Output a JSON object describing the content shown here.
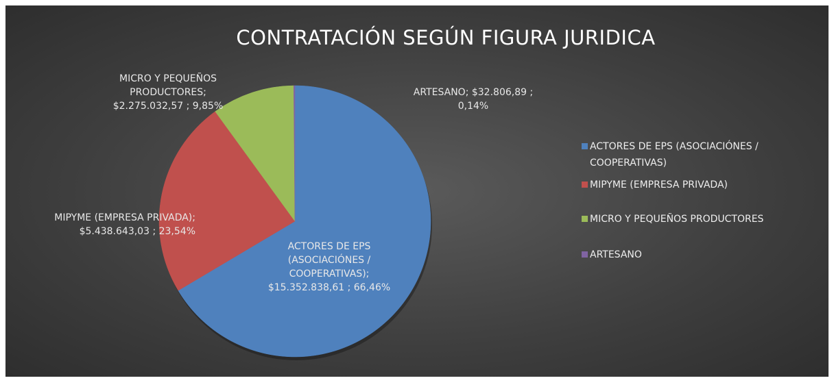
{
  "chart_data": {
    "type": "pie",
    "title": "CONTRATACIÓN SEGÚN FIGURA JURIDICA",
    "categories": [
      "ACTORES DE EPS (ASOCIACIÓNES / COOPERATIVAS)",
      "MIPYME (EMPRESA PRIVADA)",
      "MICRO Y PEQUEÑOS PRODUCTORES",
      "ARTESANO"
    ],
    "values": [
      15352838.61,
      5438643.03,
      2275032.57,
      32806.89
    ],
    "value_labels": [
      "ACTORES DE EPS (ASOCIACIÓNES / COOPERATIVAS); $15.352.838,61 ; 66,46%",
      "MIPYME (EMPRESA PRIVADA);  $5.438.643,03 ; 23,54%",
      "MICRO Y PEQUEÑOS PRODUCTORES; $2.275.032,57 ; 9,85%",
      "ARTESANO; $32.806,89 ; 0,14%"
    ],
    "colors": [
      "#4f81bd",
      "#c0504d",
      "#9bbb59",
      "#8064a2"
    ],
    "legend": "right"
  }
}
